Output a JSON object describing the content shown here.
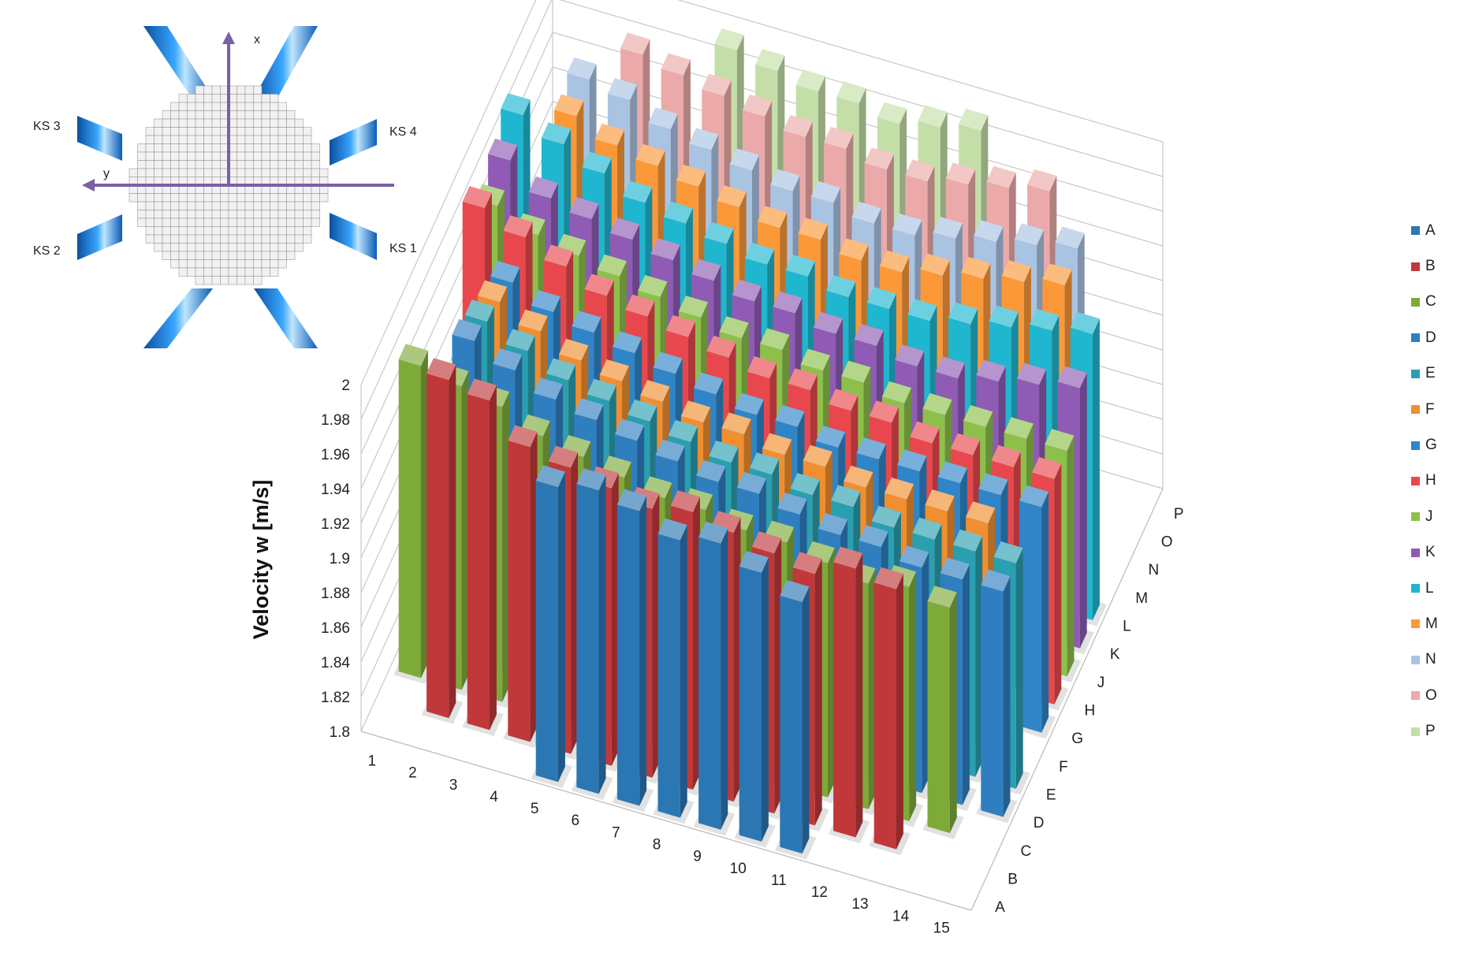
{
  "inset": {
    "x_label": "x",
    "y_label": "y",
    "ks": [
      "KS 1",
      "KS 2",
      "KS 3",
      "KS 4"
    ]
  },
  "chart_data": {
    "type": "bar3d",
    "ylabel": "Velocity w [m/s]",
    "ylim": [
      1.8,
      2.0
    ],
    "yticks": [
      "1.8",
      "1.82",
      "1.84",
      "1.86",
      "1.88",
      "1.9",
      "1.92",
      "1.94",
      "1.96",
      "1.98",
      "2"
    ],
    "x": [
      "1",
      "2",
      "3",
      "4",
      "5",
      "6",
      "7",
      "8",
      "9",
      "10",
      "11",
      "12",
      "13",
      "14",
      "15"
    ],
    "z": [
      "A",
      "B",
      "C",
      "D",
      "E",
      "F",
      "G",
      "H",
      "J",
      "K",
      "L",
      "M",
      "N",
      "O",
      "P"
    ],
    "legend_position": "right",
    "series": [
      {
        "name": "A",
        "color": "#2b77b4",
        "values": [
          null,
          null,
          null,
          null,
          1.97,
          1.975,
          1.97,
          1.96,
          1.965,
          1.955,
          1.945,
          null,
          null,
          null,
          null
        ]
      },
      {
        "name": "B",
        "color": "#c0383a",
        "values": [
          null,
          1.995,
          1.99,
          1.97,
          1.965,
          1.96,
          1.955,
          1.96,
          1.955,
          1.95,
          1.945,
          1.955,
          1.95,
          null,
          null
        ]
      },
      {
        "name": "C",
        "color": "#7eaa3a",
        "values": [
          1.98,
          1.975,
          1.97,
          1.96,
          1.955,
          1.95,
          1.945,
          1.945,
          1.94,
          1.94,
          1.935,
          1.93,
          1.935,
          1.93,
          null
        ]
      },
      {
        "name": "D",
        "color": "#2f7fc0",
        "values": [
          null,
          1.985,
          1.975,
          1.965,
          1.96,
          1.955,
          1.95,
          1.945,
          1.945,
          1.94,
          1.935,
          1.935,
          1.93,
          1.93,
          1.93
        ]
      },
      {
        "name": "E",
        "color": "#2a9fb0",
        "values": [
          null,
          1.98,
          1.97,
          1.96,
          1.955,
          1.95,
          1.945,
          1.94,
          1.94,
          1.935,
          1.935,
          1.93,
          1.93,
          1.93,
          1.93
        ]
      },
      {
        "name": "F",
        "color": "#f08e30",
        "values": [
          null,
          1.975,
          1.965,
          1.955,
          1.95,
          1.945,
          1.94,
          1.94,
          1.935,
          1.935,
          1.93,
          1.93,
          1.93,
          1.93,
          null
        ]
      },
      {
        "name": "G",
        "color": "#2f85c8",
        "values": [
          null,
          1.97,
          1.96,
          1.955,
          1.95,
          1.945,
          1.94,
          1.935,
          1.935,
          1.93,
          1.93,
          1.93,
          1.93,
          1.93,
          1.93
        ]
      },
      {
        "name": "H",
        "color": "#e8484d",
        "values": [
          1.99,
          1.98,
          1.97,
          1.96,
          1.955,
          1.95,
          1.945,
          1.94,
          1.94,
          1.935,
          1.935,
          1.93,
          1.93,
          1.93,
          1.93
        ]
      },
      {
        "name": "J",
        "color": "#8cc04a",
        "values": [
          1.975,
          1.965,
          1.96,
          1.955,
          1.95,
          1.945,
          1.94,
          1.94,
          1.935,
          1.935,
          1.93,
          1.93,
          1.93,
          1.93,
          1.93
        ]
      },
      {
        "name": "K",
        "color": "#8f5bb4",
        "values": [
          1.985,
          1.97,
          1.965,
          1.96,
          1.955,
          1.95,
          1.945,
          1.945,
          1.94,
          1.94,
          1.935,
          1.935,
          1.94,
          1.945,
          1.95
        ]
      },
      {
        "name": "L",
        "color": "#1fb6cf",
        "values": [
          1.995,
          1.985,
          1.975,
          1.965,
          1.96,
          1.955,
          1.95,
          1.95,
          1.945,
          1.945,
          1.945,
          1.95,
          1.955,
          1.96,
          1.965
        ]
      },
      {
        "name": "M",
        "color": "#fb9838",
        "values": [
          null,
          1.985,
          1.975,
          1.97,
          1.965,
          1.96,
          1.955,
          1.955,
          1.95,
          1.95,
          1.955,
          1.96,
          1.965,
          1.97,
          null
        ]
      },
      {
        "name": "N",
        "color": "#a9c3e3",
        "values": [
          null,
          1.99,
          1.985,
          1.975,
          1.97,
          1.965,
          1.96,
          1.96,
          1.955,
          1.955,
          1.96,
          1.965,
          1.97,
          1.975,
          null
        ]
      },
      {
        "name": "O",
        "color": "#ebaaa9",
        "values": [
          null,
          null,
          1.995,
          1.99,
          1.985,
          1.98,
          1.975,
          1.975,
          1.97,
          1.97,
          1.975,
          1.98,
          1.985,
          null,
          null
        ]
      },
      {
        "name": "P",
        "color": "#c4dea8",
        "values": [
          null,
          null,
          null,
          null,
          1.995,
          1.99,
          1.985,
          1.985,
          1.98,
          1.985,
          1.99,
          null,
          null,
          null,
          null
        ]
      }
    ]
  }
}
